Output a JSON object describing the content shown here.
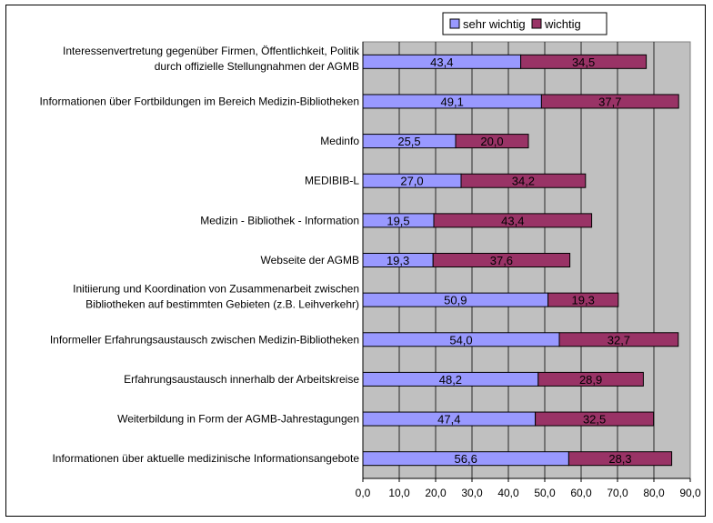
{
  "chart_data": {
    "type": "bar",
    "orientation": "horizontal",
    "stacked": true,
    "categories": [
      "Interessenvertretung gegenüber Firmen, Öffentlichkeit, Politik|durch offizielle Stellungnahmen der AGMB",
      "Informationen über Fortbildungen im Bereich Medizin-Bibliotheken",
      "Medinfo",
      "MEDIBIB-L",
      "Medizin - Bibliothek - Information",
      "Webseite der AGMB",
      "Initiierung und Koordination von Zusammenarbeit zwischen|Bibliotheken auf bestimmten Gebieten (z.B. Leihverkehr)",
      "Informeller Erfahrungsaustausch zwischen Medizin-Bibliotheken",
      "Erfahrungsaustausch innerhalb der Arbeitskreise",
      "Weiterbildung in Form der AGMB-Jahrestagungen",
      "Informationen über aktuelle medizinische Informationsangebote"
    ],
    "series": [
      {
        "name": "sehr wichtig",
        "color": "#9999ff",
        "values": [
          43.4,
          49.1,
          25.5,
          27.0,
          19.5,
          19.3,
          50.9,
          54.0,
          48.2,
          47.4,
          56.6
        ],
        "labels": [
          "43,4",
          "49,1",
          "25,5",
          "27,0",
          "19,5",
          "19,3",
          "50,9",
          "54,0",
          "48,2",
          "47,4",
          "56,6"
        ]
      },
      {
        "name": "wichtig",
        "color": "#993366",
        "values": [
          34.5,
          37.7,
          20.0,
          34.2,
          43.4,
          37.6,
          19.3,
          32.7,
          28.9,
          32.5,
          28.3
        ],
        "labels": [
          "34,5",
          "37,7",
          "20,0",
          "34,2",
          "43,4",
          "37,6",
          "19,3",
          "32,7",
          "28,9",
          "32,5",
          "28,3"
        ]
      }
    ],
    "xlim": [
      0,
      90
    ],
    "xticks": [
      0,
      10,
      20,
      30,
      40,
      50,
      60,
      70,
      80,
      90
    ],
    "xtick_labels": [
      "0,0",
      "10,0",
      "20,0",
      "30,0",
      "40,0",
      "50,0",
      "60,0",
      "70,0",
      "80,0",
      "90,0"
    ],
    "grid": true,
    "plot_background": "#c0c0c0",
    "legend_position": "top"
  }
}
